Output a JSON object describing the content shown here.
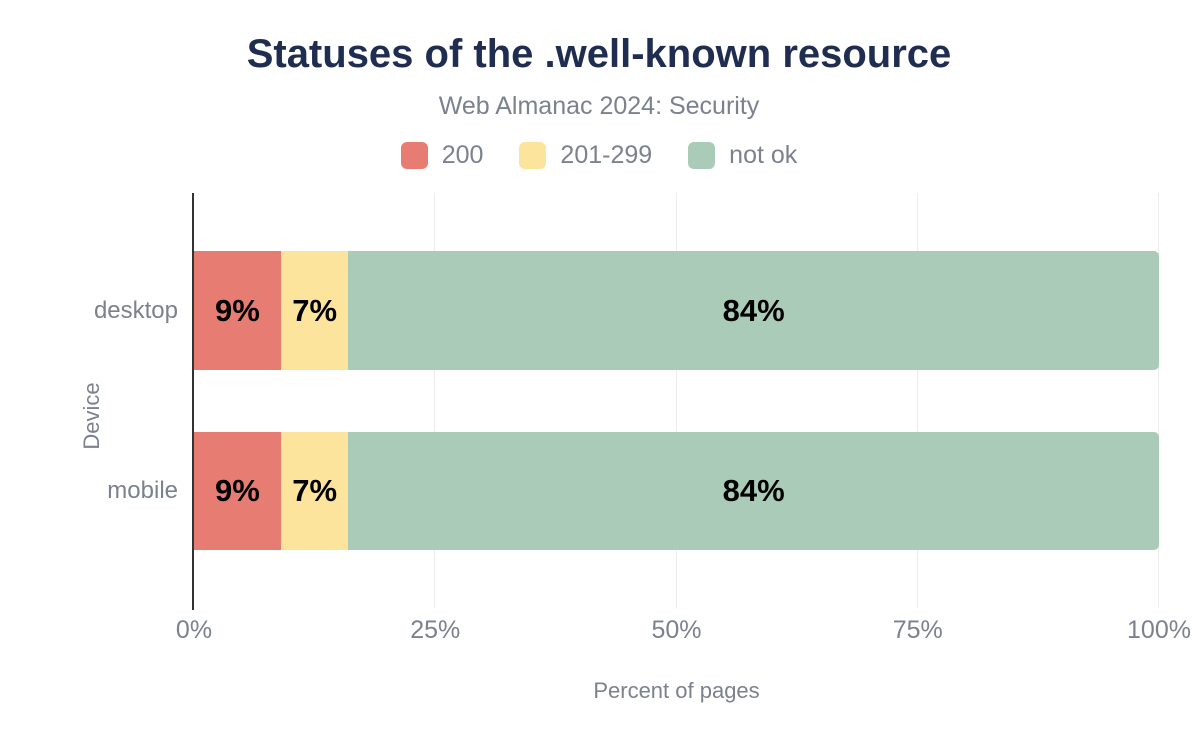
{
  "chart_data": {
    "type": "bar",
    "orientation": "horizontal",
    "stacked": true,
    "title": "Statuses of the .well-known resource",
    "subtitle": "Web Almanac 2024: Security",
    "unit": "%",
    "categories": [
      "desktop",
      "mobile"
    ],
    "series": [
      {
        "name": "200",
        "color": "#e67c72",
        "values": [
          9,
          9
        ]
      },
      {
        "name": "201-299",
        "color": "#fde49c",
        "values": [
          7,
          7
        ]
      },
      {
        "name": "not ok",
        "color": "#a9cbb8",
        "values": [
          84,
          84
        ]
      }
    ],
    "data_labels": [
      [
        "9%",
        "7%",
        "84%"
      ],
      [
        "9%",
        "7%",
        "84%"
      ]
    ],
    "xlabel": "Percent of pages",
    "ylabel": "Device",
    "xlim": [
      0,
      100
    ],
    "xticks": [
      {
        "value": 0,
        "label": "0%"
      },
      {
        "value": 25,
        "label": "25%"
      },
      {
        "value": 50,
        "label": "50%"
      },
      {
        "value": 75,
        "label": "75%"
      },
      {
        "value": 100,
        "label": "100%"
      }
    ],
    "legend_position": "top",
    "grid": "vertical",
    "colors": {
      "title_text": "#1f2d50",
      "secondary_text": "#7b828e",
      "gridline": "#ededed",
      "axis_line": "#333333",
      "data_label_text": "#000000"
    }
  }
}
